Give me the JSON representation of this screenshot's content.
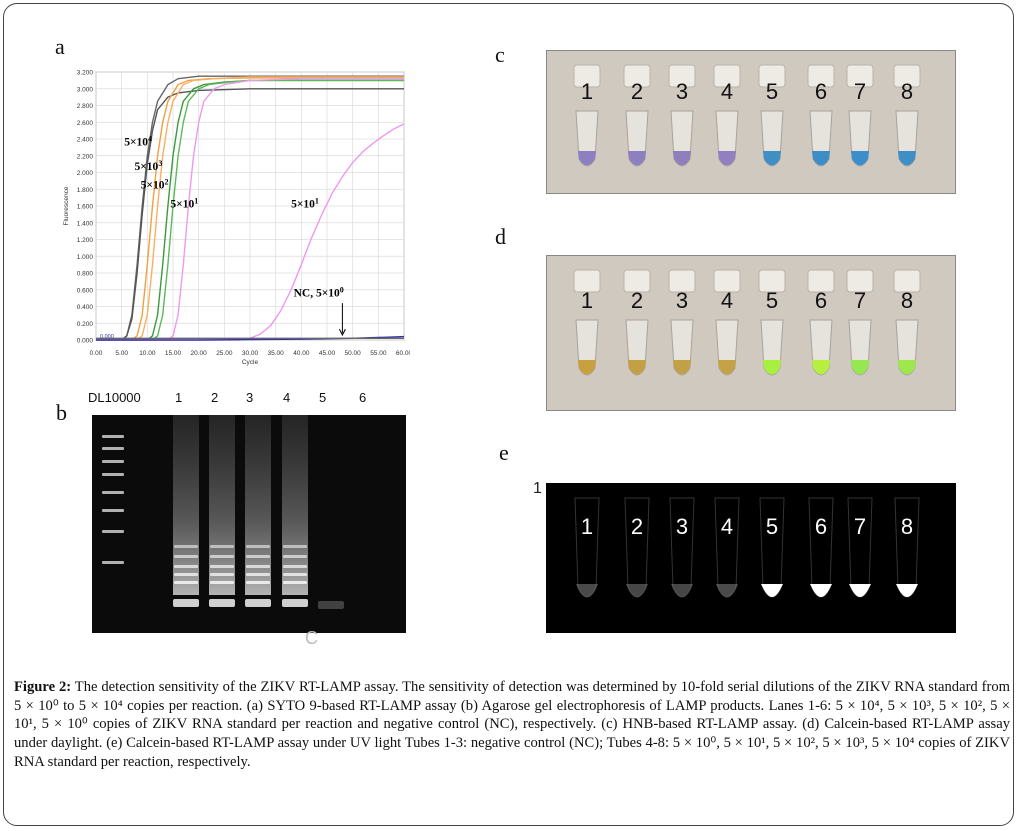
{
  "panels": {
    "a": "a",
    "b": "b",
    "c": "c",
    "d": "d",
    "e": "e"
  },
  "chart_data": {
    "type": "line",
    "xlabel": "Cycle",
    "ylabel": "Fluorescence",
    "xlim": [
      0,
      60
    ],
    "ylim": [
      0,
      3.2
    ],
    "x_ticks": [
      "0.00",
      "5.00",
      "10.00",
      "15.00",
      "20.00",
      "25.00",
      "30.00",
      "35.00",
      "40.00",
      "45.00",
      "50.00",
      "55.00",
      "60.00"
    ],
    "y_ticks": [
      "0.000",
      "0.200",
      "0.400",
      "0.600",
      "0.800",
      "1.000",
      "1.200",
      "1.400",
      "1.600",
      "1.800",
      "2.000",
      "2.200",
      "2.400",
      "2.600",
      "2.800",
      "3.000",
      "3.200"
    ],
    "threshold_label": "0.000",
    "grid": true,
    "series": [
      {
        "color": "#666666",
        "x": [
          0,
          5,
          6,
          7,
          8,
          9,
          10,
          11,
          12,
          14,
          16,
          20,
          30,
          60
        ],
        "y": [
          0,
          0,
          0.05,
          0.3,
          0.9,
          1.6,
          2.2,
          2.6,
          2.85,
          3.05,
          3.12,
          3.15,
          3.15,
          3.15
        ]
      },
      {
        "color": "#555555",
        "x": [
          0,
          5,
          6,
          7,
          8,
          9,
          10,
          11,
          12,
          14,
          16,
          20,
          30,
          60
        ],
        "y": [
          0,
          0,
          0.05,
          0.25,
          0.8,
          1.5,
          2.1,
          2.5,
          2.75,
          2.9,
          2.95,
          2.98,
          3.0,
          3.0
        ]
      },
      {
        "color": "#f0a040",
        "x": [
          0,
          7,
          8,
          9,
          10,
          11,
          12,
          13,
          14,
          16,
          18,
          22,
          30,
          60
        ],
        "y": [
          0,
          0,
          0.05,
          0.3,
          0.9,
          1.6,
          2.2,
          2.6,
          2.85,
          3.05,
          3.1,
          3.12,
          3.13,
          3.13
        ]
      },
      {
        "color": "#f7b060",
        "x": [
          0,
          8,
          9,
          10,
          11,
          12,
          13,
          14,
          15,
          17,
          19,
          23,
          30,
          60
        ],
        "y": [
          0,
          0,
          0.05,
          0.3,
          0.9,
          1.6,
          2.2,
          2.6,
          2.85,
          3.05,
          3.1,
          3.12,
          3.14,
          3.14
        ]
      },
      {
        "color": "#3a9a3a",
        "x": [
          0,
          10,
          11,
          12,
          13,
          14,
          15,
          16,
          17,
          19,
          21,
          25,
          30,
          60
        ],
        "y": [
          0,
          0,
          0.05,
          0.3,
          0.9,
          1.6,
          2.2,
          2.6,
          2.85,
          3.0,
          3.05,
          3.08,
          3.1,
          3.1
        ]
      },
      {
        "color": "#5cb85c",
        "x": [
          0,
          11,
          12,
          13,
          14,
          15,
          16,
          17,
          18,
          20,
          22,
          26,
          30,
          60
        ],
        "y": [
          0,
          0,
          0.05,
          0.3,
          0.9,
          1.6,
          2.2,
          2.6,
          2.85,
          3.0,
          3.05,
          3.08,
          3.1,
          3.1
        ]
      },
      {
        "color": "#ee99ee",
        "x": [
          0,
          14,
          15,
          16,
          17,
          18,
          19,
          20,
          21,
          23,
          25,
          30,
          40,
          60
        ],
        "y": [
          0,
          0,
          0.05,
          0.3,
          0.9,
          1.6,
          2.2,
          2.6,
          2.85,
          3.0,
          3.05,
          3.1,
          3.12,
          3.12
        ]
      },
      {
        "color": "#ee99ee",
        "x": [
          0,
          28,
          30,
          32,
          34,
          36,
          38,
          40,
          42,
          44,
          46,
          48,
          50,
          52,
          54,
          56,
          58,
          60
        ],
        "y": [
          0,
          0,
          0.02,
          0.07,
          0.17,
          0.35,
          0.6,
          0.9,
          1.22,
          1.5,
          1.75,
          1.95,
          2.12,
          2.25,
          2.35,
          2.44,
          2.52,
          2.58
        ]
      },
      {
        "color": "#3333aa",
        "x": [
          0,
          20,
          40,
          50,
          55,
          60
        ],
        "y": [
          0,
          0,
          0.01,
          0.02,
          0.03,
          0.04
        ]
      },
      {
        "color": "#666666",
        "x": [
          0,
          60
        ],
        "y": [
          0.02,
          0.02
        ]
      }
    ],
    "annotations": [
      {
        "text": "5×10",
        "sup": "4",
        "x": 5.5,
        "y": 2.32
      },
      {
        "text": "5×10",
        "sup": "3",
        "x": 7.5,
        "y": 2.03
      },
      {
        "text": "5×10",
        "sup": "2",
        "x": 8.7,
        "y": 1.81
      },
      {
        "text": "5×10",
        "sup": "1",
        "x": 14.5,
        "y": 1.58
      },
      {
        "text": "5×10",
        "sup": "1",
        "x": 38,
        "y": 1.58
      },
      {
        "text": "NC, 5×10",
        "sup": "0",
        "x": 38.5,
        "y": 0.52
      }
    ]
  },
  "gel": {
    "header": [
      "DL10000",
      "1",
      "2",
      "3",
      "4",
      "5",
      "6"
    ],
    "corner_mark": "C"
  },
  "tubes_c": {
    "labels": [
      "1",
      "2",
      "3",
      "4",
      "5",
      "6",
      "7",
      "8"
    ],
    "colors": [
      "#8e80c0",
      "#8e80c0",
      "#8f7fbd",
      "#917fbf",
      "#3f8fc4",
      "#3d8ec6",
      "#3b8ecc",
      "#3f8fc6"
    ]
  },
  "tubes_d": {
    "labels": [
      "1",
      "2",
      "3",
      "4",
      "5",
      "6",
      "7",
      "8"
    ],
    "colors": [
      "#c8a040",
      "#c4a045",
      "#c2a048",
      "#c5a248",
      "#a8f040",
      "#b6ef40",
      "#96e850",
      "#9ee84e"
    ]
  },
  "tubes_e": {
    "corner_mark": "1",
    "labels": [
      "1",
      "2",
      "3",
      "4",
      "5",
      "6",
      "7",
      "8"
    ],
    "brightness": [
      0.35,
      0.3,
      0.3,
      0.35,
      1,
      1,
      1,
      1
    ]
  },
  "caption": {
    "lead": "Figure 2:",
    "text": "The detection sensitivity of the ZIKV RT-LAMP assay. The sensitivity of detection was determined by 10-fold serial dilutions of the ZIKV RNA standard from 5 × 10⁰ to 5 × 10⁴ copies per reaction. (a) SYTO 9-based RT-LAMP assay (b) Agarose gel electrophoresis of LAMP products. Lanes 1-6: 5 × 10⁴, 5 × 10³, 5 × 10², 5 × 10¹, 5 × 10⁰ copies of ZIKV RNA standard per reaction and negative control (NC), respectively. (c) HNB-based RT-LAMP assay. (d) Calcein-based RT-LAMP assay under daylight. (e) Calcein-based RT-LAMP assay under UV light Tubes 1-3: negative control (NC); Tubes 4-8: 5 × 10⁰, 5 × 10¹, 5 × 10², 5 × 10³, 5 × 10⁴ copies of ZIKV RNA standard per reaction, respectively."
  }
}
